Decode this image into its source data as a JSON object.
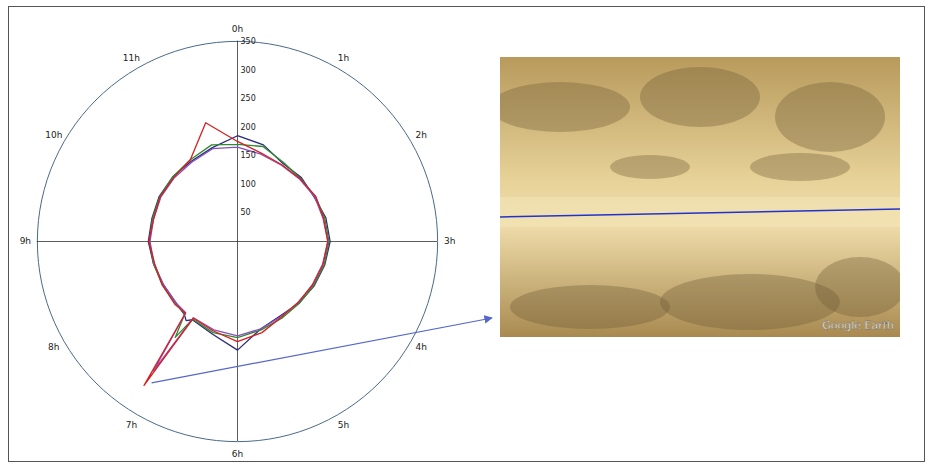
{
  "chart_data": {
    "type": "polar",
    "angle_ticks": [
      {
        "value": 0,
        "label": "0h"
      },
      {
        "value": 1,
        "label": "1h"
      },
      {
        "value": 2,
        "label": "2h"
      },
      {
        "value": 3,
        "label": "3h"
      },
      {
        "value": 4,
        "label": "4h"
      },
      {
        "value": 5,
        "label": "5h"
      },
      {
        "value": 6,
        "label": "6h"
      },
      {
        "value": 7,
        "label": "7h"
      },
      {
        "value": 8,
        "label": "8h"
      },
      {
        "value": 9,
        "label": "9h"
      },
      {
        "value": 10,
        "label": "10h"
      },
      {
        "value": 11,
        "label": "11h"
      }
    ],
    "rlim": [
      0,
      350
    ],
    "rticks": [
      50,
      100,
      150,
      200,
      250,
      300,
      350
    ],
    "x": [
      0,
      0.5,
      1,
      1.5,
      2,
      2.5,
      3,
      3.5,
      4,
      4.5,
      5,
      5.5,
      6,
      6.5,
      7,
      7.1,
      7.2,
      7.5,
      8,
      8.5,
      9,
      9.5,
      10,
      10.5,
      11,
      11.5,
      12
    ],
    "series": [
      {
        "color": "#2a2a80",
        "values": [
          185,
          175,
          158,
          158,
          155,
          160,
          162,
          158,
          155,
          152,
          150,
          158,
          190,
          168,
          158,
          165,
          158,
          152,
          150,
          152,
          156,
          155,
          158,
          160,
          162,
          170,
          185
        ]
      },
      {
        "color": "#2e8b2e",
        "values": [
          170,
          172,
          160,
          156,
          157,
          158,
          160,
          157,
          154,
          153,
          155,
          160,
          168,
          165,
          157,
          200,
          157,
          153,
          152,
          152,
          154,
          154,
          157,
          160,
          165,
          175,
          170
        ]
      },
      {
        "color": "#8a4fbf",
        "values": [
          165,
          158,
          154,
          154,
          156,
          155,
          158,
          154,
          151,
          151,
          152,
          158,
          165,
          160,
          154,
          270,
          154,
          152,
          150,
          151,
          153,
          152,
          155,
          157,
          160,
          168,
          165
        ]
      },
      {
        "color": "#d62020",
        "values": [
          175,
          160,
          155,
          155,
          158,
          156,
          158,
          155,
          152,
          150,
          153,
          165,
          175,
          162,
          155,
          300,
          155,
          155,
          152,
          150,
          155,
          152,
          156,
          158,
          165,
          215,
          175
        ]
      }
    ],
    "image": {
      "credit": "Google Earth"
    }
  }
}
